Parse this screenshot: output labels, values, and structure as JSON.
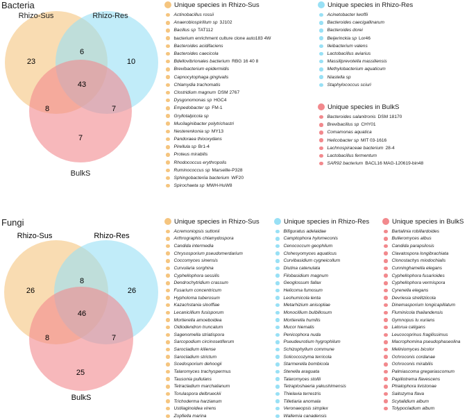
{
  "colors": {
    "sus": "#F5C57F",
    "res": "#98E0F5",
    "bulk": "#F2898D"
  },
  "bacteria": {
    "title": "Bacteria",
    "venn": {
      "labels": {
        "sus": "Rhizo-Sus",
        "res": "Rhizo-Res",
        "bulk": "BulkS"
      },
      "counts": {
        "sus_only": "23",
        "res_only": "10",
        "sus_res": "6",
        "all": "43",
        "sus_bulk": "8",
        "res_bulk": "7",
        "bulk_only": "7"
      }
    },
    "lists": [
      {
        "header": "Unique species in Rhizo-Sus",
        "color": "#F5C57F",
        "items": [
          {
            "name": "Actinobacillus rossii",
            "strain": ""
          },
          {
            "name": "Anaerobiospirillum sp",
            "strain": "3J102"
          },
          {
            "name": "Bacillus sp",
            "strain": "TAT112"
          },
          {
            "name": "",
            "strain": "bacterium enrichment culture clone auto183 4W"
          },
          {
            "name": "Bacteroides acidifaciens",
            "strain": ""
          },
          {
            "name": "Bacteroides caecicola",
            "strain": ""
          },
          {
            "name": "Bdellovibrionales bacterium",
            "strain": "RBG 16 40 8"
          },
          {
            "name": "Brevibacterium epidermidis",
            "strain": ""
          },
          {
            "name": "Capnocytophaga gingivalis",
            "strain": ""
          },
          {
            "name": "Chlamydia trachomatis",
            "strain": ""
          },
          {
            "name": "Clostridium magnum",
            "strain": "DSM 2767"
          },
          {
            "name": "Dysgonomonas sp",
            "strain": "HGC4"
          },
          {
            "name": "Empedobacter sp",
            "strain": "FM-1"
          },
          {
            "name": "Gryllotalpicola sp",
            "strain": ""
          },
          {
            "name": "Mucilaginibacter polytrichastri",
            "strain": ""
          },
          {
            "name": "Nesterenkonia sp",
            "strain": "MY13"
          },
          {
            "name": "Pandoraea thiooxydans",
            "strain": ""
          },
          {
            "name": "Pirellula sp",
            "strain": "Br1-4"
          },
          {
            "name": "Proteus mirabilis",
            "strain": ""
          },
          {
            "name": "Rhodococcus erythropolis",
            "strain": ""
          },
          {
            "name": "Ruminococcus sp",
            "strain": "Marseille-P328"
          },
          {
            "name": "Sphingobacteriia bacterium",
            "strain": "WF20"
          },
          {
            "name": "Spirochaeta sp",
            "strain": "MWH-HuW8"
          }
        ]
      },
      {
        "header": "Unique species in Rhizo-Res",
        "color": "#98E0F5",
        "items": [
          {
            "name": "Acinetobacter lwoffii",
            "strain": ""
          },
          {
            "name": "Bacteroides caecigallinarum",
            "strain": ""
          },
          {
            "name": "Bacteroides dorei",
            "strain": ""
          },
          {
            "name": "Beijerinckia sp",
            "strain": "Lor46"
          },
          {
            "name": "Ileibacterium valens",
            "strain": ""
          },
          {
            "name": "Lactobacillus aviarius",
            "strain": ""
          },
          {
            "name": "Massiliprevotella massiliensis",
            "strain": ""
          },
          {
            "name": "Methylobacterium aquaticum",
            "strain": ""
          },
          {
            "name": "Niastella sp",
            "strain": ""
          },
          {
            "name": "Staphylococcus sciuri",
            "strain": ""
          }
        ]
      },
      {
        "header": "Unique species in BulkS",
        "color": "#F2898D",
        "items": [
          {
            "name": "Bacteroides salanitronis",
            "strain": "DSM 18170"
          },
          {
            "name": "Brevibacillus sp",
            "strain": "CHY01"
          },
          {
            "name": "Comamonas aquatica",
            "strain": ""
          },
          {
            "name": "Helicobacter sp",
            "strain": "MIT 03-1616"
          },
          {
            "name": "Lachnospiraceae bacterium",
            "strain": "28-4"
          },
          {
            "name": "Lactobacillus fermentum",
            "strain": ""
          },
          {
            "name": "SAR92 bacterium",
            "strain": "BACL16 MAG-120619-bin48"
          }
        ]
      }
    ]
  },
  "fungi": {
    "title": "Fungi",
    "venn": {
      "labels": {
        "sus": "Rhizo-Sus",
        "res": "Rhizo-Res",
        "bulk": "BulkS"
      },
      "counts": {
        "sus_only": "26",
        "res_only": "26",
        "sus_res": "8",
        "all": "46",
        "sus_bulk": "8",
        "res_bulk": "7",
        "bulk_only": "25"
      }
    },
    "lists": [
      {
        "header": "Unique species in Rhizo-Sus",
        "color": "#F5C57F",
        "items": [
          {
            "name": "Acremoniopsis suttonii",
            "strain": ""
          },
          {
            "name": "Arthrographis chlamydospora",
            "strain": ""
          },
          {
            "name": "Candida intermedia",
            "strain": ""
          },
          {
            "name": "Chrysosporium pseudomerdarium",
            "strain": ""
          },
          {
            "name": "Coccomyces sinensis",
            "strain": ""
          },
          {
            "name": "Curvularia sorghina",
            "strain": ""
          },
          {
            "name": "Cyphellophora sessilis",
            "strain": ""
          },
          {
            "name": "Dendrochytridium crassum",
            "strain": ""
          },
          {
            "name": "Fusarium concentricum",
            "strain": ""
          },
          {
            "name": "Hypholoma tuberosum",
            "strain": ""
          },
          {
            "name": "Kazachstania slooffiae",
            "strain": ""
          },
          {
            "name": "Lecanicillium fusisporum",
            "strain": ""
          },
          {
            "name": "Mortierella amoeboidea",
            "strain": ""
          },
          {
            "name": "Oidiodendron truncatum",
            "strain": ""
          },
          {
            "name": "Sagenomella striatispora",
            "strain": ""
          },
          {
            "name": "Sarcopodium circinosetiferum",
            "strain": ""
          },
          {
            "name": "Sarocladium kiliense",
            "strain": ""
          },
          {
            "name": "Sarocladium strictum",
            "strain": ""
          },
          {
            "name": "Scedosporium dehoogii",
            "strain": ""
          },
          {
            "name": "Talaromyces trachyspermus",
            "strain": ""
          },
          {
            "name": "Tausonia pullulans",
            "strain": ""
          },
          {
            "name": "Tetracladium marchalianum",
            "strain": ""
          },
          {
            "name": "Torulaspora delbrueckii",
            "strain": ""
          },
          {
            "name": "Trichoderma harzianum",
            "strain": ""
          },
          {
            "name": "Ustilaginoidea virens",
            "strain": ""
          },
          {
            "name": "Zopfiella marina",
            "strain": ""
          }
        ]
      },
      {
        "header": "Unique species in Rhizo-Res",
        "color": "#98E0F5",
        "items": [
          {
            "name": "Bifiguratus adelaidae",
            "strain": ""
          },
          {
            "name": "Camptophora hylomeconis",
            "strain": ""
          },
          {
            "name": "Cenococcum geophilum",
            "strain": ""
          },
          {
            "name": "Clohesyomyces aquaticus",
            "strain": ""
          },
          {
            "name": "Curvibasidium cygneicollum",
            "strain": ""
          },
          {
            "name": "Diutina catenulata",
            "strain": ""
          },
          {
            "name": "Filobasidium magnum",
            "strain": ""
          },
          {
            "name": "Geoglossum fallax",
            "strain": ""
          },
          {
            "name": "Helicoma fumosum",
            "strain": ""
          },
          {
            "name": "Leohumicola lenta",
            "strain": ""
          },
          {
            "name": "Metarhizium anisopliae",
            "strain": ""
          },
          {
            "name": "Monocillium bulbillosum",
            "strain": ""
          },
          {
            "name": "Mortierella humilis",
            "strain": ""
          },
          {
            "name": "Mucor hiemalis",
            "strain": ""
          },
          {
            "name": "Penicophora nuda",
            "strain": ""
          },
          {
            "name": "Pseudeurotium hygrophilum",
            "strain": ""
          },
          {
            "name": "Schizophyllum commune",
            "strain": ""
          },
          {
            "name": "Solicoccozyma terricola",
            "strain": ""
          },
          {
            "name": "Starmerella bombicola",
            "strain": ""
          },
          {
            "name": "Stenella araguata",
            "strain": ""
          },
          {
            "name": "Talaromyces stollii",
            "strain": ""
          },
          {
            "name": "Tetraploshaeria yakushimensis",
            "strain": ""
          },
          {
            "name": "Thielavia terrestris",
            "strain": ""
          },
          {
            "name": "Tilletiaria anomala",
            "strain": ""
          },
          {
            "name": "Veronaeopsis simplex",
            "strain": ""
          },
          {
            "name": "Wallemia canadensis",
            "strain": ""
          }
        ]
      },
      {
        "header": "Unique species in BulkS",
        "color": "#F2898D",
        "items": [
          {
            "name": "Bartalinia robillardoides",
            "strain": ""
          },
          {
            "name": "Bulleromyces albus",
            "strain": ""
          },
          {
            "name": "Candida parapsilosis",
            "strain": ""
          },
          {
            "name": "Clavatospora longibrachiata",
            "strain": ""
          },
          {
            "name": "Clonostachys miodochialis",
            "strain": ""
          },
          {
            "name": "Cunninghamella elegans",
            "strain": ""
          },
          {
            "name": "Cyphellophora fusarioides",
            "strain": ""
          },
          {
            "name": "Cyphellophora vermispora",
            "strain": ""
          },
          {
            "name": "Cyrenella elegans",
            "strain": ""
          },
          {
            "name": "Devriesia strelitziicola",
            "strain": ""
          },
          {
            "name": "Dinemasporium longicapillatum",
            "strain": ""
          },
          {
            "name": "Fluminicola thailandensis",
            "strain": ""
          },
          {
            "name": "Gymnopus lu xurians",
            "strain": ""
          },
          {
            "name": "Latorua caligans",
            "strain": ""
          },
          {
            "name": "Leucocoprinus fragilissimus",
            "strain": ""
          },
          {
            "name": "Macrophomina pseudophaseolina",
            "strain": ""
          },
          {
            "name": "Meliniomyces bicolor",
            "strain": ""
          },
          {
            "name": "Ochroconis cordanae",
            "strain": ""
          },
          {
            "name": "Ochroconis mirabilis",
            "strain": ""
          },
          {
            "name": "Palmiascoma gregariascomum",
            "strain": ""
          },
          {
            "name": "Papiliotrema flavescens",
            "strain": ""
          },
          {
            "name": "Phialophora livistonae",
            "strain": ""
          },
          {
            "name": "Saitozyma flava",
            "strain": ""
          },
          {
            "name": "Scytalidium album",
            "strain": ""
          },
          {
            "name": "Tolypocladium album",
            "strain": ""
          }
        ]
      }
    ]
  }
}
